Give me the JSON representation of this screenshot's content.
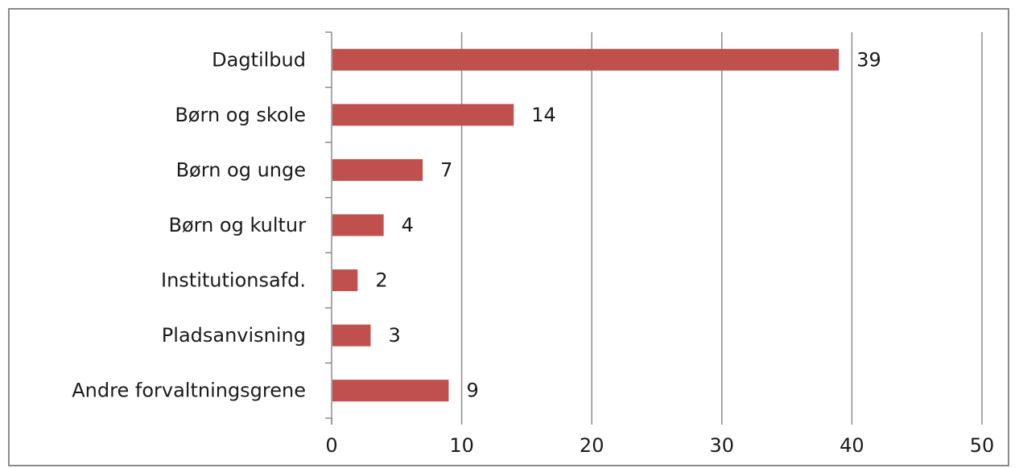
{
  "chart_data": {
    "type": "bar",
    "orientation": "horizontal",
    "categories": [
      "Dagtilbud",
      "Børn og skole",
      "Børn og unge",
      "Børn og kultur",
      "Institutionsafd.",
      "Pladsanvisning",
      "Andre forvaltningsgrene"
    ],
    "values": [
      39,
      14,
      7,
      4,
      2,
      3,
      9
    ],
    "xlim": [
      0,
      50
    ],
    "xticks": [
      0,
      10,
      20,
      30,
      40,
      50
    ],
    "grid": true,
    "bar_color": "#c0504d",
    "data_labels": true
  }
}
